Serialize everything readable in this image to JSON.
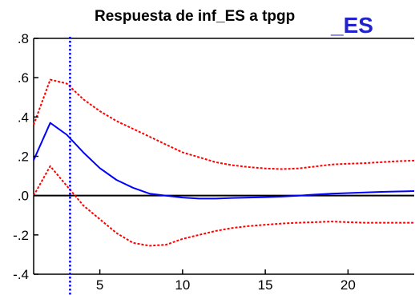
{
  "chart_data": {
    "type": "line",
    "title": "Respuesta de inf_ES a tpgp",
    "title_suffix": "_ES",
    "xlim": [
      1,
      24
    ],
    "ylim": [
      -0.4,
      0.8
    ],
    "x_ticks": [
      5,
      10,
      15,
      20
    ],
    "x_tick_labels": [
      "5",
      "10",
      "15",
      "20"
    ],
    "y_ticks": [
      -0.4,
      -0.2,
      0.0,
      0.2,
      0.4,
      0.6,
      0.8
    ],
    "y_tick_labels": [
      "-.4",
      "-.2",
      ".0",
      ".2",
      ".4",
      ".6",
      ".8"
    ],
    "vline_x": 3.2,
    "x": [
      1,
      2,
      3,
      4,
      5,
      6,
      7,
      8,
      9,
      10,
      11,
      12,
      13,
      14,
      15,
      16,
      17,
      18,
      19,
      20,
      21,
      22,
      23,
      24
    ],
    "series": [
      {
        "style": "solid",
        "color": "#0000ff",
        "values": [
          0.18,
          0.37,
          0.31,
          0.22,
          0.14,
          0.08,
          0.04,
          0.01,
          0.0,
          -0.01,
          -0.015,
          -0.015,
          -0.012,
          -0.01,
          -0.008,
          -0.005,
          0.0,
          0.005,
          0.01,
          0.013,
          0.016,
          0.019,
          0.021,
          0.023
        ]
      },
      {
        "style": "dotted",
        "color": "#ff0000",
        "values": [
          0.36,
          0.59,
          0.57,
          0.49,
          0.43,
          0.38,
          0.34,
          0.3,
          0.26,
          0.22,
          0.195,
          0.17,
          0.155,
          0.145,
          0.138,
          0.135,
          0.138,
          0.148,
          0.158,
          0.162,
          0.165,
          0.17,
          0.175,
          0.178
        ]
      },
      {
        "style": "dotted",
        "color": "#ff0000",
        "values": [
          0.0,
          0.15,
          0.05,
          -0.05,
          -0.12,
          -0.19,
          -0.24,
          -0.255,
          -0.25,
          -0.22,
          -0.2,
          -0.18,
          -0.165,
          -0.155,
          -0.148,
          -0.142,
          -0.138,
          -0.135,
          -0.132,
          -0.135,
          -0.138,
          -0.138,
          -0.138,
          -0.138
        ]
      }
    ],
    "grid": false
  },
  "colors": {
    "axis": "#000000",
    "zero_line": "#000000",
    "vline": "#0000ff",
    "title": "#000000",
    "title_suffix": "#2222cc"
  }
}
